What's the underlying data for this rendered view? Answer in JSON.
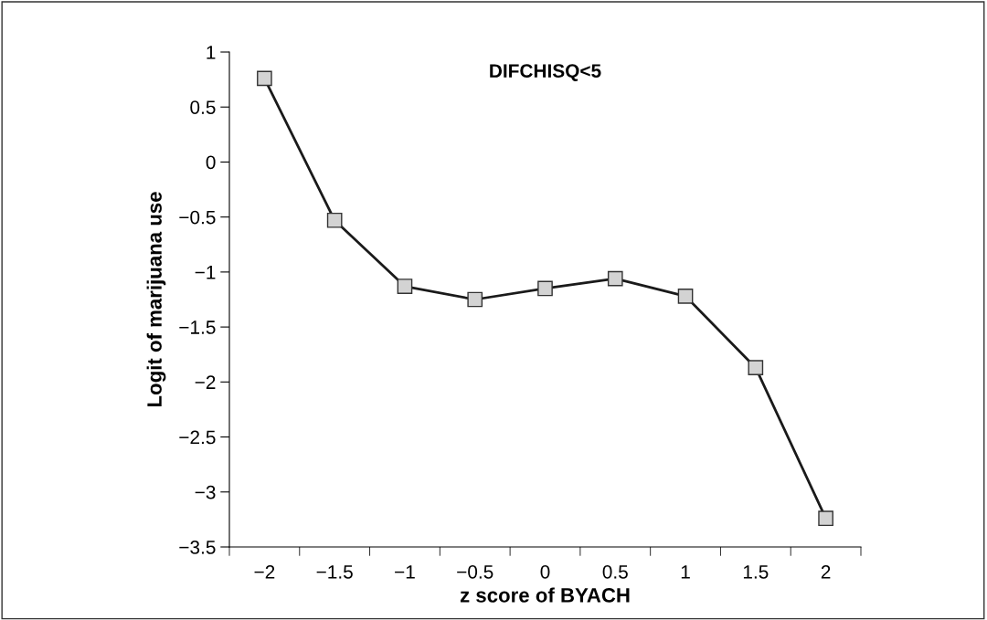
{
  "chart_data": {
    "type": "line",
    "title": "DIFCHISQ<5",
    "xlabel": "z score of BYACH",
    "ylabel": "Logit of marijuana use",
    "categories": [
      "−2",
      "−1.5",
      "−1",
      "−0.5",
      "0",
      "0.5",
      "1",
      "1.5",
      "2"
    ],
    "series": [
      {
        "color": "#1a1a1a",
        "values": [
          0.76,
          -0.53,
          -1.13,
          -1.25,
          -1.15,
          -1.06,
          -1.22,
          -1.87,
          -3.24
        ]
      }
    ],
    "ylim": [
      -3.5,
      1
    ],
    "yticks": [
      {
        "value": -3.5,
        "label": "−3.5"
      },
      {
        "value": -3,
        "label": "−3"
      },
      {
        "value": -2.5,
        "label": "−2.5"
      },
      {
        "value": -2,
        "label": "−2"
      },
      {
        "value": -1.5,
        "label": "−1.5"
      },
      {
        "value": -1,
        "label": "−1"
      },
      {
        "value": -0.5,
        "label": "−0.5"
      },
      0,
      0.5,
      1
    ],
    "marker": "square",
    "line_style": "solid",
    "grid": false
  }
}
